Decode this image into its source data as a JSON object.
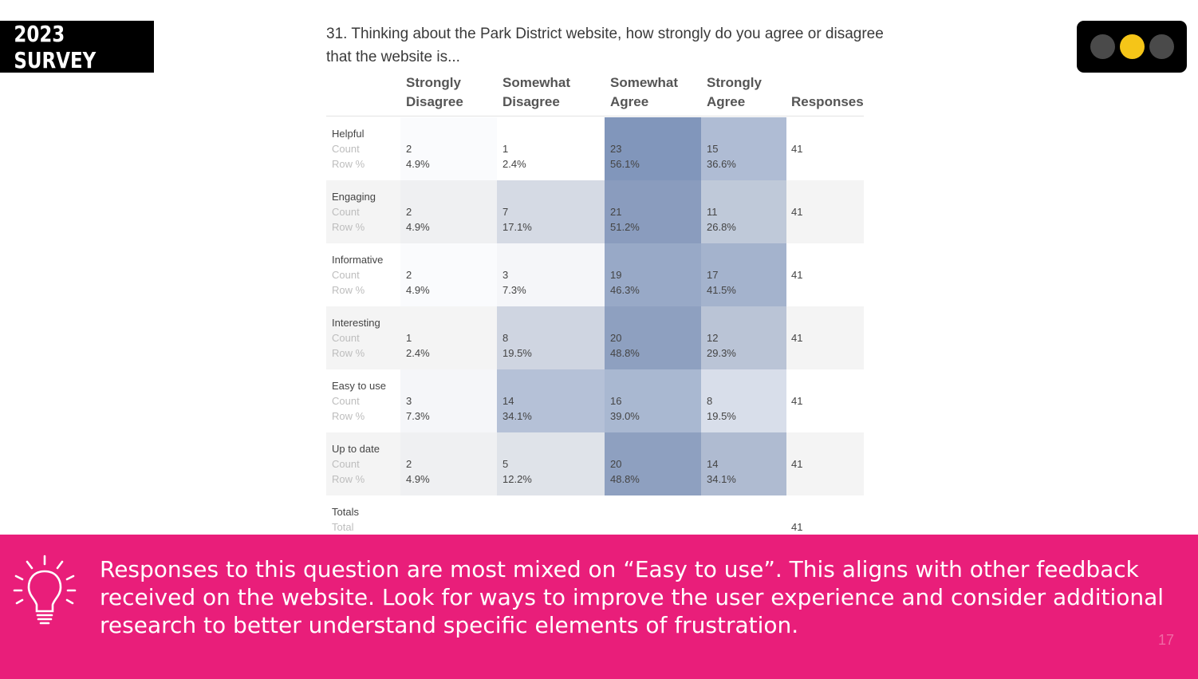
{
  "badge": "2023 SURVEY",
  "traffic_light": {
    "colors": [
      "#4a4a4a",
      "#f5c518",
      "#4a4a4a"
    ],
    "active": "yellow"
  },
  "question": "31. Thinking about the Park District website, how strongly do you agree or disagree that the website is...",
  "headers": [
    {
      "line1": "Strongly",
      "line2": "Disagree"
    },
    {
      "line1": "Somewhat",
      "line2": "Disagree"
    },
    {
      "line1": "Somewhat",
      "line2": "Agree"
    },
    {
      "line1": "Strongly",
      "line2": "Agree"
    },
    {
      "line1": "",
      "line2": "Responses"
    }
  ],
  "sub_labels": {
    "count": "Count",
    "row_pct": "Row %",
    "total": "Total"
  },
  "rows": [
    {
      "label": "Helpful",
      "cells": [
        {
          "count": "2",
          "pct": "4.9%"
        },
        {
          "count": "1",
          "pct": "2.4%"
        },
        {
          "count": "23",
          "pct": "56.1%"
        },
        {
          "count": "15",
          "pct": "36.6%"
        }
      ],
      "responses": "41"
    },
    {
      "label": "Engaging",
      "cells": [
        {
          "count": "2",
          "pct": "4.9%"
        },
        {
          "count": "7",
          "pct": "17.1%"
        },
        {
          "count": "21",
          "pct": "51.2%"
        },
        {
          "count": "11",
          "pct": "26.8%"
        }
      ],
      "responses": "41"
    },
    {
      "label": "Informative",
      "cells": [
        {
          "count": "2",
          "pct": "4.9%"
        },
        {
          "count": "3",
          "pct": "7.3%"
        },
        {
          "count": "19",
          "pct": "46.3%"
        },
        {
          "count": "17",
          "pct": "41.5%"
        }
      ],
      "responses": "41"
    },
    {
      "label": "Interesting",
      "cells": [
        {
          "count": "1",
          "pct": "2.4%"
        },
        {
          "count": "8",
          "pct": "19.5%"
        },
        {
          "count": "20",
          "pct": "48.8%"
        },
        {
          "count": "12",
          "pct": "29.3%"
        }
      ],
      "responses": "41"
    },
    {
      "label": "Easy to use",
      "cells": [
        {
          "count": "3",
          "pct": "7.3%"
        },
        {
          "count": "14",
          "pct": "34.1%"
        },
        {
          "count": "16",
          "pct": "39.0%"
        },
        {
          "count": "8",
          "pct": "19.5%"
        }
      ],
      "responses": "41"
    },
    {
      "label": "Up to date",
      "cells": [
        {
          "count": "2",
          "pct": "4.9%"
        },
        {
          "count": "5",
          "pct": "12.2%"
        },
        {
          "count": "20",
          "pct": "48.8%"
        },
        {
          "count": "14",
          "pct": "34.1%"
        }
      ],
      "responses": "41"
    }
  ],
  "totals": {
    "label": "Totals",
    "responses": "41"
  },
  "heat_color": "#5b76a6",
  "insight": "Responses to this question are most mixed on “Easy to use”. This aligns with other feedback received on the website. Look for ways to improve the user experience and consider additional research to better understand specific elements of frustration.",
  "page_number": "17",
  "banner_color": "#e91e7a",
  "icon": "lightbulb-icon"
}
